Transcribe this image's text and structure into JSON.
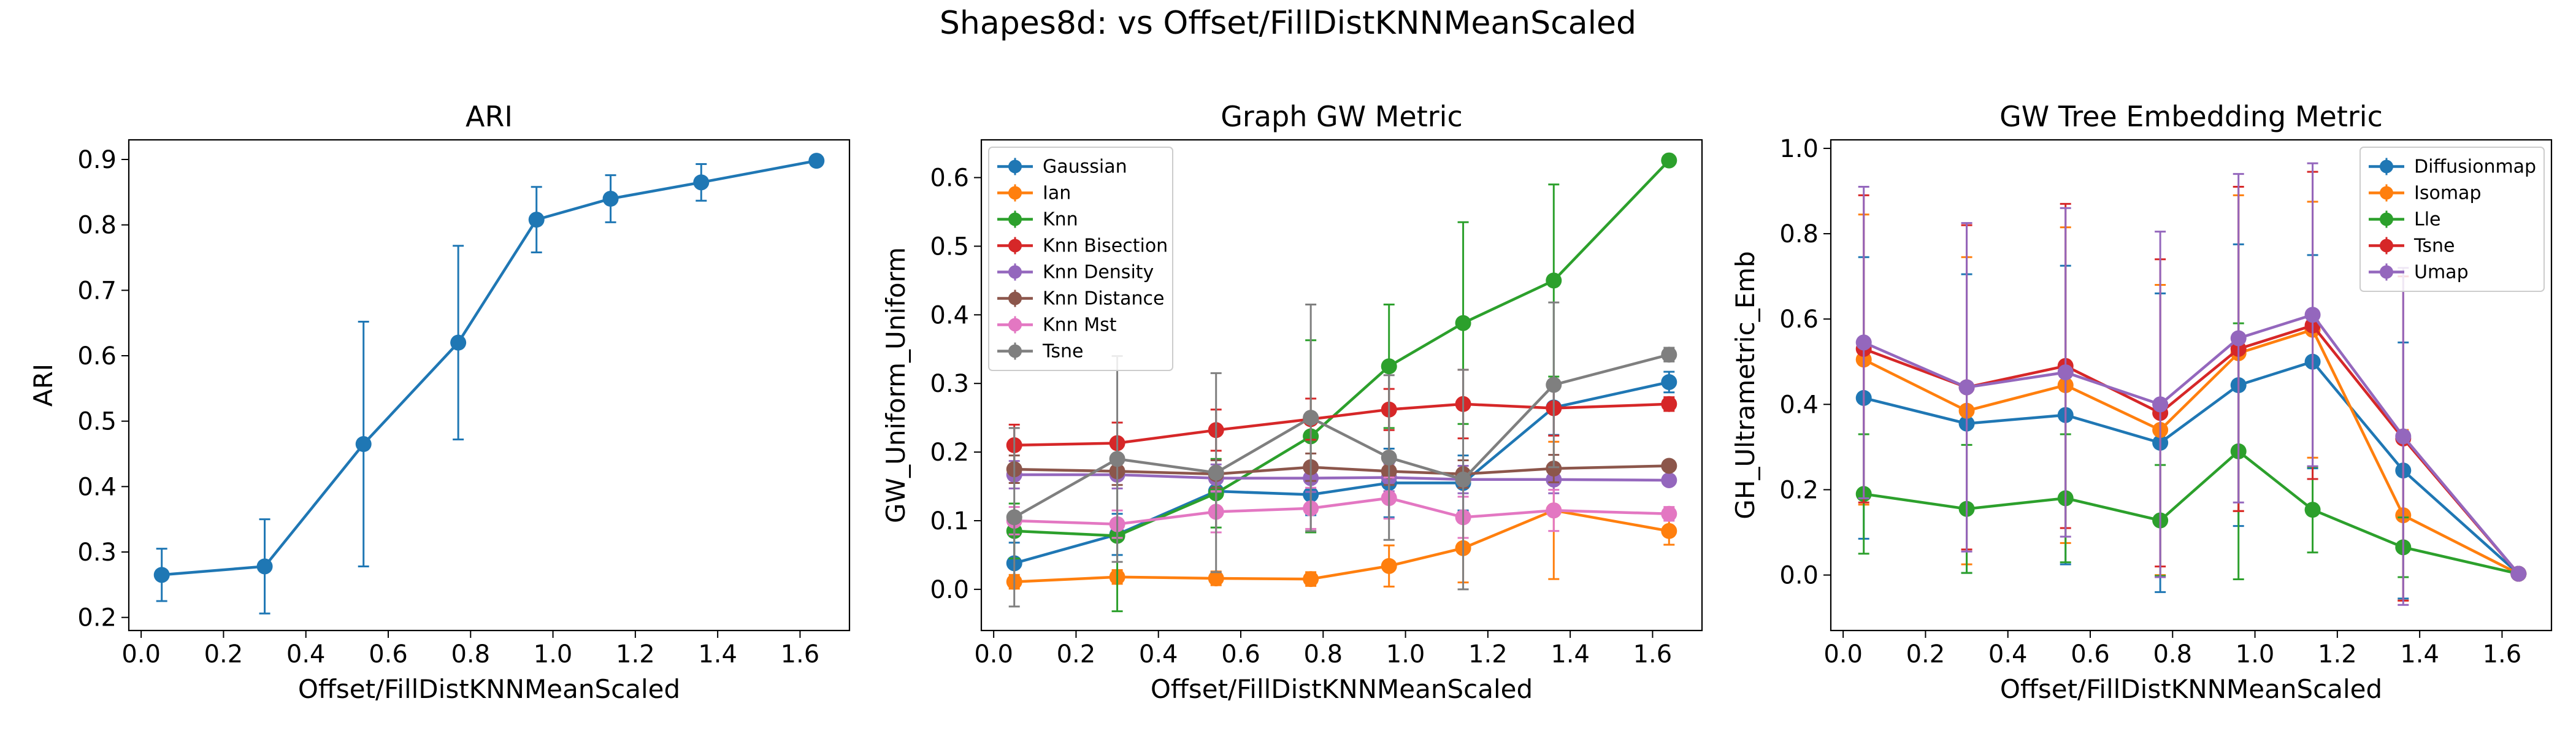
{
  "suptitle": "Shapes8d: vs Offset/FillDistKNNMeanScaled",
  "chart_data": [
    {
      "type": "line",
      "title": "ARI",
      "xlabel": "Offset/FillDistKNNMeanScaled",
      "ylabel": "ARI",
      "xlim": [
        -0.03,
        1.72
      ],
      "ylim": [
        0.18,
        0.93
      ],
      "xticks": [
        0.0,
        0.2,
        0.4,
        0.6,
        0.8,
        1.0,
        1.2,
        1.4,
        1.6
      ],
      "xtick_labels": [
        "0.0",
        "0.2",
        "0.4",
        "0.6",
        "0.8",
        "1.0",
        "1.2",
        "1.4",
        "1.6"
      ],
      "yticks": [
        0.2,
        0.3,
        0.4,
        0.5,
        0.6,
        0.7,
        0.8,
        0.9
      ],
      "ytick_labels": [
        "0.2",
        "0.3",
        "0.4",
        "0.5",
        "0.6",
        "0.7",
        "0.8",
        "0.9"
      ],
      "grid": false,
      "legend": null,
      "x": [
        0.05,
        0.3,
        0.54,
        0.77,
        0.96,
        1.14,
        1.36,
        1.64
      ],
      "series": [
        {
          "name": "",
          "color": "#1f77b4",
          "y": [
            0.265,
            0.278,
            0.465,
            0.62,
            0.808,
            0.84,
            0.865,
            0.898
          ],
          "err": [
            0.04,
            0.072,
            0.187,
            0.148,
            0.05,
            0.036,
            0.028,
            0.003
          ]
        }
      ]
    },
    {
      "type": "line",
      "title": "Graph GW Metric",
      "xlabel": "Offset/FillDistKNNMeanScaled",
      "ylabel": "GW_Uniform_Uniform",
      "xlim": [
        -0.03,
        1.72
      ],
      "ylim": [
        -0.06,
        0.655
      ],
      "xticks": [
        0.0,
        0.2,
        0.4,
        0.6,
        0.8,
        1.0,
        1.2,
        1.4,
        1.6
      ],
      "xtick_labels": [
        "0.0",
        "0.2",
        "0.4",
        "0.6",
        "0.8",
        "1.0",
        "1.2",
        "1.4",
        "1.6"
      ],
      "yticks": [
        0.0,
        0.1,
        0.2,
        0.3,
        0.4,
        0.5,
        0.6
      ],
      "ytick_labels": [
        "0.0",
        "0.1",
        "0.2",
        "0.3",
        "0.4",
        "0.5",
        "0.6"
      ],
      "grid": false,
      "legend": "upper-left",
      "x": [
        0.05,
        0.3,
        0.54,
        0.77,
        0.96,
        1.14,
        1.36,
        1.64
      ],
      "series": [
        {
          "name": "Gaussian",
          "color": "#1f77b4",
          "y": [
            0.038,
            0.08,
            0.143,
            0.138,
            0.155,
            0.155,
            0.265,
            0.302
          ],
          "err": [
            0.03,
            0.03,
            0.03,
            0.03,
            0.05,
            0.04,
            0.04,
            0.015
          ]
        },
        {
          "name": "Ian",
          "color": "#ff7f0e",
          "y": [
            0.011,
            0.018,
            0.016,
            0.015,
            0.034,
            0.06,
            0.115,
            0.085
          ],
          "err": [
            0.01,
            0.01,
            0.01,
            0.01,
            0.03,
            0.05,
            0.1,
            0.02
          ]
        },
        {
          "name": "Knn",
          "color": "#2ca02c",
          "y": [
            0.085,
            0.078,
            0.14,
            0.223,
            0.325,
            0.388,
            0.45,
            0.625
          ],
          "err": [
            0.04,
            0.11,
            0.05,
            0.14,
            0.09,
            0.147,
            0.14,
            0.005
          ]
        },
        {
          "name": "Knn Bisection",
          "color": "#d62728",
          "y": [
            0.21,
            0.213,
            0.232,
            0.248,
            0.262,
            0.27,
            0.264,
            0.27
          ],
          "err": [
            0.03,
            0.03,
            0.03,
            0.03,
            0.03,
            0.05,
            0.04,
            0.01
          ]
        },
        {
          "name": "Knn Density",
          "color": "#9467bd",
          "y": [
            0.167,
            0.167,
            0.162,
            0.162,
            0.163,
            0.16,
            0.16,
            0.159
          ],
          "err": [
            0.02,
            0.02,
            0.02,
            0.02,
            0.02,
            0.02,
            0.02,
            0.005
          ]
        },
        {
          "name": "Knn Distance",
          "color": "#8c564b",
          "y": [
            0.175,
            0.172,
            0.168,
            0.178,
            0.172,
            0.168,
            0.176,
            0.18
          ],
          "err": [
            0.02,
            0.02,
            0.02,
            0.02,
            0.02,
            0.02,
            0.02,
            0.005
          ]
        },
        {
          "name": "Knn Mst",
          "color": "#e377c2",
          "y": [
            0.1,
            0.095,
            0.113,
            0.118,
            0.133,
            0.105,
            0.115,
            0.11
          ],
          "err": [
            0.02,
            0.02,
            0.03,
            0.03,
            0.03,
            0.03,
            0.03,
            0.01
          ]
        },
        {
          "name": "Tsne",
          "color": "#7f7f7f",
          "y": [
            0.105,
            0.19,
            0.17,
            0.25,
            0.192,
            0.16,
            0.298,
            0.342
          ],
          "err": [
            0.13,
            0.15,
            0.145,
            0.165,
            0.12,
            0.16,
            0.12,
            0.01
          ]
        }
      ]
    },
    {
      "type": "line",
      "title": "GW Tree Embedding Metric",
      "xlabel": "Offset/FillDistKNNMeanScaled",
      "ylabel": "GH_Ultrametric_Emb",
      "xlim": [
        -0.03,
        1.72
      ],
      "ylim": [
        -0.13,
        1.02
      ],
      "xticks": [
        0.0,
        0.2,
        0.4,
        0.6,
        0.8,
        1.0,
        1.2,
        1.4,
        1.6
      ],
      "xtick_labels": [
        "0.0",
        "0.2",
        "0.4",
        "0.6",
        "0.8",
        "1.0",
        "1.2",
        "1.4",
        "1.6"
      ],
      "yticks": [
        0.0,
        0.2,
        0.4,
        0.6,
        0.8,
        1.0
      ],
      "ytick_labels": [
        "0.0",
        "0.2",
        "0.4",
        "0.6",
        "0.8",
        "1.0"
      ],
      "grid": false,
      "legend": "upper-right",
      "x": [
        0.05,
        0.3,
        0.54,
        0.77,
        0.96,
        1.14,
        1.36,
        1.64
      ],
      "series": [
        {
          "name": "Diffusionmap",
          "color": "#1f77b4",
          "y": [
            0.415,
            0.355,
            0.375,
            0.31,
            0.445,
            0.5,
            0.245,
            0.003
          ],
          "err": [
            0.33,
            0.35,
            0.35,
            0.35,
            0.33,
            0.25,
            0.3,
            0.005
          ]
        },
        {
          "name": "Isomap",
          "color": "#ff7f0e",
          "y": [
            0.505,
            0.385,
            0.445,
            0.34,
            0.52,
            0.575,
            0.14,
            0.003
          ],
          "err": [
            0.34,
            0.36,
            0.37,
            0.34,
            0.37,
            0.3,
            0.2,
            0.005
          ]
        },
        {
          "name": "Lle",
          "color": "#2ca02c",
          "y": [
            0.19,
            0.155,
            0.18,
            0.128,
            0.29,
            0.153,
            0.065,
            0.003
          ],
          "err": [
            0.14,
            0.15,
            0.15,
            0.13,
            0.3,
            0.1,
            0.07,
            0.005
          ]
        },
        {
          "name": "Tsne",
          "color": "#d62728",
          "y": [
            0.53,
            0.44,
            0.49,
            0.38,
            0.53,
            0.585,
            0.32,
            0.003
          ],
          "err": [
            0.36,
            0.38,
            0.38,
            0.36,
            0.38,
            0.36,
            0.38,
            0.005
          ]
        },
        {
          "name": "Umap",
          "color": "#9467bd",
          "y": [
            0.545,
            0.44,
            0.475,
            0.4,
            0.555,
            0.61,
            0.325,
            0.003
          ],
          "err": [
            0.365,
            0.385,
            0.385,
            0.405,
            0.385,
            0.355,
            0.395,
            0.005
          ]
        }
      ]
    }
  ]
}
